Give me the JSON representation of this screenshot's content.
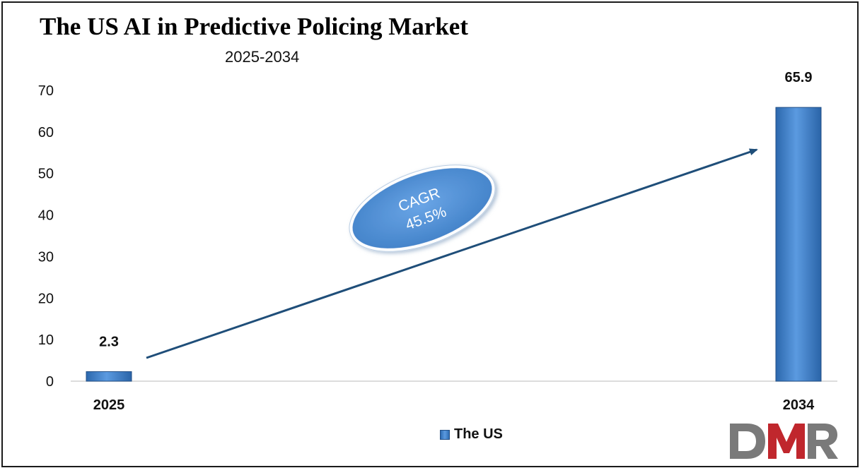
{
  "title": "The US AI in Predictive Policing Market",
  "subtitle": "2025-2034",
  "legend": {
    "label": "The US"
  },
  "annotation": {
    "line1": "CAGR",
    "line2": "45.5%"
  },
  "logo": {
    "text": "DMR"
  },
  "colors": {
    "bar": "#3a7cc8",
    "bar_light": "#6aa7e6",
    "arrow": "#1f4e79",
    "ellipse": "#4f8fd6",
    "logo_gray": "#7a7a7a",
    "logo_red": "#c0272d"
  },
  "chart_data": {
    "type": "bar",
    "categories": [
      "2025",
      "2034"
    ],
    "series": [
      {
        "name": "The US",
        "values": [
          2.3,
          65.9
        ]
      }
    ],
    "data_labels": [
      "2.3",
      "65.9"
    ],
    "ylim": [
      0,
      70
    ],
    "yticks": [
      0,
      10,
      20,
      30,
      40,
      50,
      60,
      70
    ],
    "grid": false,
    "legend_position": "bottom"
  }
}
